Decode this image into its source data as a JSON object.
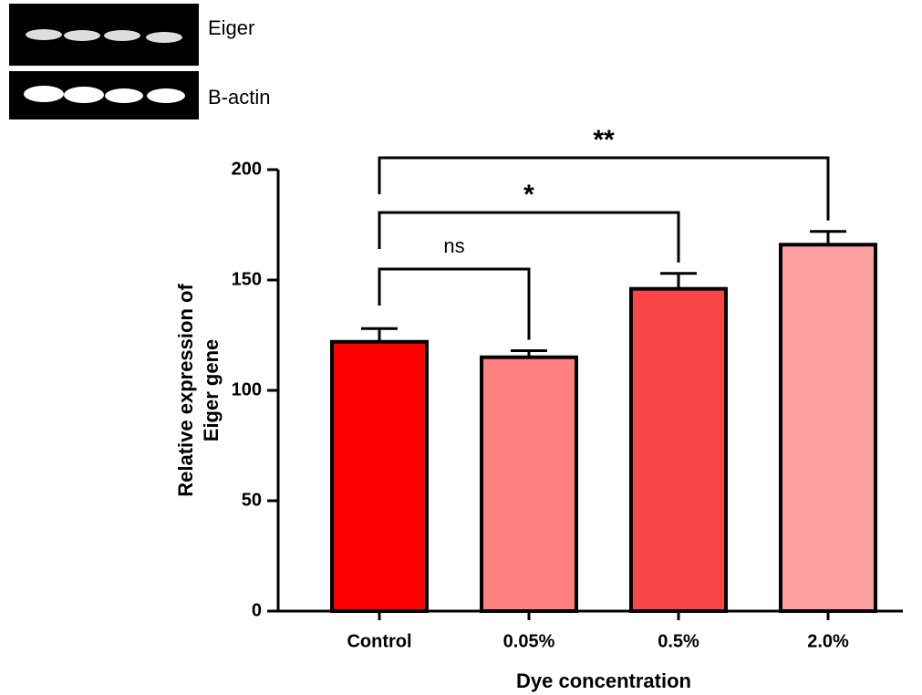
{
  "blot": {
    "rows": [
      "Eiger",
      "B-actin"
    ]
  },
  "chart_data": {
    "type": "bar",
    "ylabel": [
      "Relative expression of",
      "Eiger gene"
    ],
    "xlabel": "Dye concentration",
    "categories": [
      "Control",
      "0.05%",
      "0.5%",
      "2.0%"
    ],
    "values": [
      122,
      115,
      146,
      166
    ],
    "errors": [
      6,
      3,
      7,
      6
    ],
    "colors": [
      "#ff0000",
      "#ff8080",
      "#f94545",
      "#ffa0a0"
    ],
    "ylim": [
      0,
      200
    ],
    "yticks": [
      0,
      50,
      100,
      150,
      200
    ],
    "comparisons": [
      {
        "from": 0,
        "to": 1,
        "label": "ns"
      },
      {
        "from": 0,
        "to": 2,
        "label": "*"
      },
      {
        "from": 0,
        "to": 3,
        "label": "**"
      }
    ]
  }
}
